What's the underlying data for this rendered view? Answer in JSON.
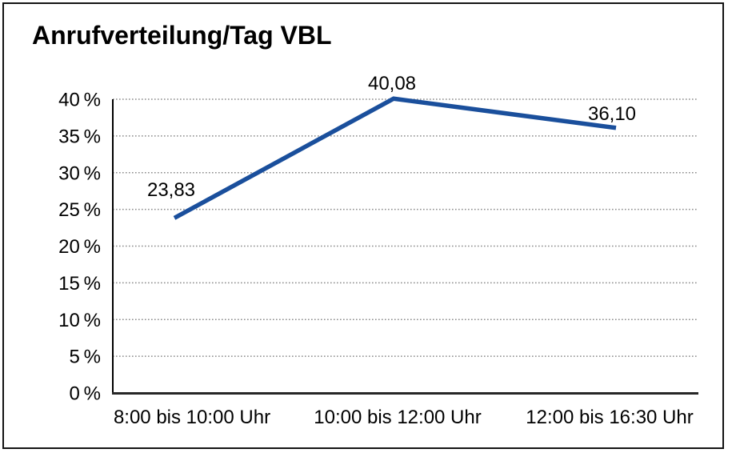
{
  "chart_data": {
    "type": "line",
    "title": "Anrufverteilung/Tag VBL",
    "categories": [
      "8:00 bis 10:00 Uhr",
      "10:00 bis 12:00 Uhr",
      "12:00 bis 16:30 Uhr"
    ],
    "values": [
      23.83,
      40.08,
      36.1
    ],
    "point_labels": [
      "23,83",
      "40,08",
      "36,10"
    ],
    "y_tick_labels": [
      "0 %",
      "5 %",
      "10 %",
      "15 %",
      "20 %",
      "25 %",
      "30 %",
      "35 %",
      "40 %"
    ],
    "y_tick_step": 5,
    "ylim": [
      0,
      40
    ],
    "xlabel": "",
    "ylabel": "",
    "grid": "horizontal-dotted",
    "legend": "none",
    "line_color": "#1A4F9C",
    "grid_color": "#8C8C8C",
    "axis_color": "#000000",
    "x_axis_color": "#262626",
    "text_color": "#000000",
    "background_color": "#FFFFFF",
    "border_color": "#141414"
  }
}
